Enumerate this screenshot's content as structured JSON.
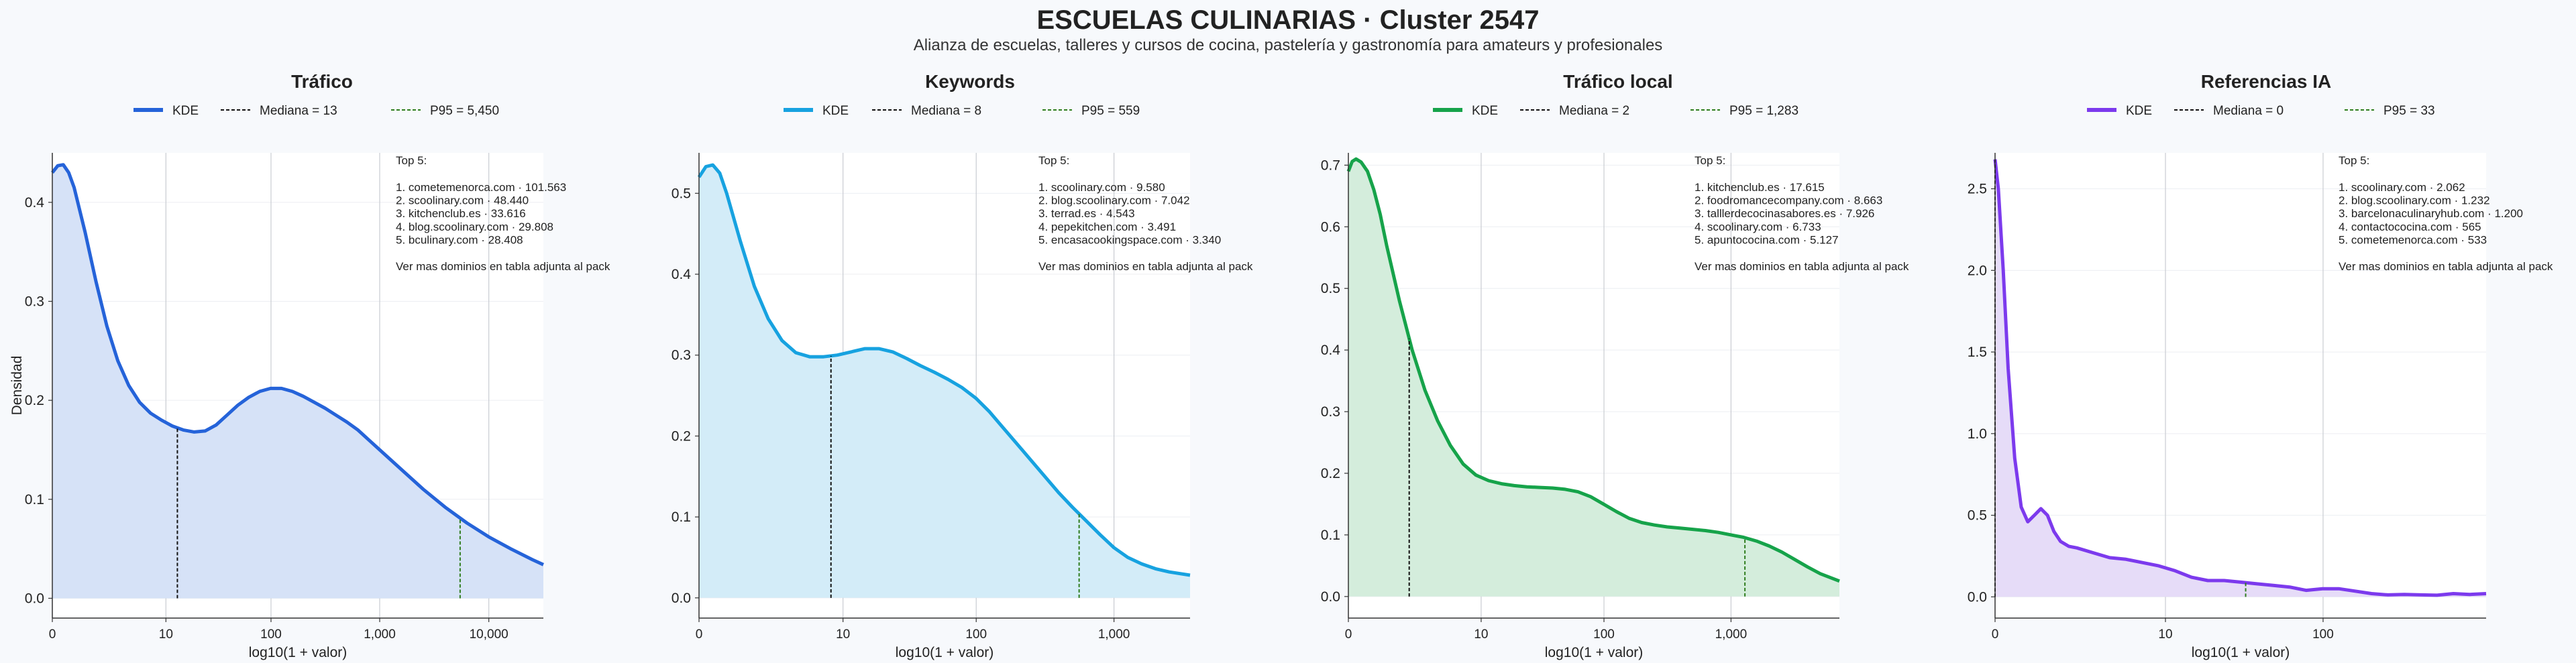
{
  "title": "ESCUELAS CULINARIAS · Cluster 2547",
  "subtitle": "Alianza de escuelas, talleres y cursos de cocina, pastelería y gastronomía para amateurs y profesionales",
  "chart_data": [
    {
      "type": "area",
      "title": "Tráfico",
      "color": "#2563d9",
      "fill": "#d6e2f7",
      "xlabel": "log10(1 + valor)",
      "ylabel": "Densidad",
      "xscale": "log10(1+x)",
      "xlim": [
        0,
        4.5
      ],
      "ylim": [
        -0.02,
        0.45
      ],
      "yticks": [
        0.0,
        0.1,
        0.2,
        0.3,
        0.4
      ],
      "ytick_labels": [
        "0.0",
        "0.1",
        "0.2",
        "0.3",
        "0.4"
      ],
      "xticks": [
        0,
        1.041,
        2.004,
        3.0,
        4.0
      ],
      "xtick_labels": [
        "0",
        "10",
        "100",
        "1,000",
        "10,000"
      ],
      "legend": [
        "KDE",
        "Mediana = 13",
        "P95 = 5,450"
      ],
      "median_x": 1.146,
      "p95_x": 3.737,
      "series": [
        {
          "x": [
            0,
            0.05,
            0.1,
            0.15,
            0.2,
            0.3,
            0.4,
            0.5,
            0.6,
            0.7,
            0.8,
            0.9,
            1.0,
            1.1,
            1.2,
            1.3,
            1.4,
            1.5,
            1.6,
            1.7,
            1.8,
            1.9,
            2.0,
            2.1,
            2.2,
            2.3,
            2.4,
            2.5,
            2.6,
            2.7,
            2.8,
            2.9,
            3.0,
            3.2,
            3.4,
            3.6,
            3.8,
            4.0,
            4.2,
            4.4,
            4.5
          ],
          "y": [
            0.43,
            0.437,
            0.438,
            0.43,
            0.415,
            0.37,
            0.32,
            0.275,
            0.24,
            0.215,
            0.198,
            0.187,
            0.18,
            0.174,
            0.17,
            0.168,
            0.169,
            0.175,
            0.185,
            0.195,
            0.203,
            0.209,
            0.212,
            0.212,
            0.209,
            0.204,
            0.198,
            0.192,
            0.185,
            0.178,
            0.17,
            0.16,
            0.15,
            0.13,
            0.11,
            0.092,
            0.076,
            0.062,
            0.05,
            0.039,
            0.034
          ]
        }
      ],
      "annotation": {
        "header": "Top 5:",
        "lines": [
          "1. cometemenorca.com · 101.563",
          "2. scoolinary.com · 48.440",
          "3. kitchenclub.es · 33.616",
          "4. blog.scoolinary.com · 29.808",
          "5. bculinary.com · 28.408"
        ],
        "footer": "Ver mas dominios en tabla adjunta al pack"
      }
    },
    {
      "type": "area",
      "title": "Keywords",
      "color": "#17a2e0",
      "fill": "#d3ecf8",
      "xlabel": "log10(1 + valor)",
      "ylabel": "",
      "xscale": "log10(1+x)",
      "xlim": [
        0,
        3.55
      ],
      "ylim": [
        -0.025,
        0.55
      ],
      "yticks": [
        0.0,
        0.1,
        0.2,
        0.3,
        0.4,
        0.5
      ],
      "ytick_labels": [
        "0.0",
        "0.1",
        "0.2",
        "0.3",
        "0.4",
        "0.5"
      ],
      "xticks": [
        0,
        1.041,
        2.004,
        3.0
      ],
      "xtick_labels": [
        "0",
        "10",
        "100",
        "1,000"
      ],
      "legend": [
        "KDE",
        "Mediana = 8",
        "P95 = 559"
      ],
      "median_x": 0.954,
      "p95_x": 2.748,
      "series": [
        {
          "x": [
            0,
            0.05,
            0.1,
            0.15,
            0.2,
            0.3,
            0.4,
            0.5,
            0.6,
            0.7,
            0.8,
            0.9,
            1.0,
            1.1,
            1.2,
            1.3,
            1.4,
            1.5,
            1.6,
            1.7,
            1.8,
            1.9,
            2.0,
            2.1,
            2.2,
            2.3,
            2.4,
            2.5,
            2.6,
            2.7,
            2.8,
            2.9,
            3.0,
            3.1,
            3.2,
            3.3,
            3.4,
            3.55
          ],
          "y": [
            0.52,
            0.533,
            0.535,
            0.525,
            0.5,
            0.44,
            0.385,
            0.345,
            0.318,
            0.303,
            0.298,
            0.298,
            0.3,
            0.304,
            0.308,
            0.308,
            0.304,
            0.296,
            0.287,
            0.279,
            0.27,
            0.26,
            0.247,
            0.23,
            0.21,
            0.19,
            0.17,
            0.15,
            0.13,
            0.112,
            0.095,
            0.078,
            0.062,
            0.05,
            0.042,
            0.036,
            0.032,
            0.028
          ]
        }
      ],
      "annotation": {
        "header": "Top 5:",
        "lines": [
          "1. scoolinary.com · 9.580",
          "2. blog.scoolinary.com · 7.042",
          "3. terrad.es · 4.543",
          "4. pepekitchen.com · 3.491",
          "5. encasacookingspace.com · 3.340"
        ],
        "footer": "Ver mas dominios en tabla adjunta al pack"
      }
    },
    {
      "type": "area",
      "title": "Tráfico local",
      "color": "#16a34a",
      "fill": "#d4eddc",
      "xlabel": "log10(1 + valor)",
      "ylabel": "",
      "xscale": "log10(1+x)",
      "xlim": [
        0,
        3.85
      ],
      "ylim": [
        -0.035,
        0.72
      ],
      "yticks": [
        0.0,
        0.1,
        0.2,
        0.3,
        0.4,
        0.5,
        0.6,
        0.7
      ],
      "ytick_labels": [
        "0.0",
        "0.1",
        "0.2",
        "0.3",
        "0.4",
        "0.5",
        "0.6",
        "0.7"
      ],
      "xticks": [
        0,
        1.041,
        2.004,
        3.0
      ],
      "xtick_labels": [
        "0",
        "10",
        "100",
        "1,000"
      ],
      "legend": [
        "KDE",
        "Mediana = 2",
        "P95 = 1,283"
      ],
      "median_x": 0.477,
      "p95_x": 3.109,
      "series": [
        {
          "x": [
            0,
            0.03,
            0.06,
            0.1,
            0.15,
            0.2,
            0.25,
            0.3,
            0.4,
            0.5,
            0.6,
            0.7,
            0.8,
            0.9,
            1.0,
            1.1,
            1.2,
            1.3,
            1.4,
            1.5,
            1.6,
            1.7,
            1.8,
            1.9,
            2.0,
            2.1,
            2.2,
            2.3,
            2.4,
            2.5,
            2.6,
            2.7,
            2.8,
            2.9,
            3.0,
            3.1,
            3.2,
            3.3,
            3.4,
            3.5,
            3.6,
            3.7,
            3.85
          ],
          "y": [
            0.69,
            0.706,
            0.71,
            0.705,
            0.69,
            0.66,
            0.62,
            0.57,
            0.48,
            0.4,
            0.335,
            0.285,
            0.245,
            0.215,
            0.197,
            0.188,
            0.183,
            0.18,
            0.178,
            0.177,
            0.176,
            0.174,
            0.17,
            0.162,
            0.15,
            0.138,
            0.127,
            0.12,
            0.116,
            0.113,
            0.111,
            0.109,
            0.107,
            0.104,
            0.1,
            0.096,
            0.09,
            0.082,
            0.072,
            0.06,
            0.048,
            0.037,
            0.025
          ]
        }
      ],
      "annotation": {
        "header": "Top 5:",
        "lines": [
          "1. kitchenclub.es · 17.615",
          "2. foodromancecompany.com · 8.663",
          "3. talllerdecocinasabores.es · 7.926",
          "4. scoolinary.com · 6.733",
          "5. apuntococina.com · 5.127"
        ],
        "footer": "Ver mas dominios en tabla adjunta al pack"
      }
    },
    {
      "type": "area",
      "title": "Referencias IA",
      "color": "#7c3aed",
      "fill": "#e6dcf8",
      "xlabel": "log10(1 + valor)",
      "ylabel": "",
      "xscale": "log10(1+x)",
      "xlim": [
        0,
        3.0
      ],
      "ylim": [
        -0.13,
        2.72
      ],
      "yticks": [
        0.0,
        0.5,
        1.0,
        1.5,
        2.0,
        2.5
      ],
      "ytick_labels": [
        "0.0",
        "0.5",
        "1.0",
        "1.5",
        "2.0",
        "2.5"
      ],
      "xticks": [
        0,
        1.041,
        2.004
      ],
      "xtick_labels": [
        "0",
        "10",
        "100"
      ],
      "legend": [
        "KDE",
        "Mediana = 0",
        "P95 = 33"
      ],
      "median_x": 0,
      "p95_x": 1.531,
      "series": [
        {
          "x": [
            0,
            0.02,
            0.05,
            0.08,
            0.12,
            0.16,
            0.2,
            0.24,
            0.28,
            0.32,
            0.36,
            0.4,
            0.45,
            0.5,
            0.6,
            0.7,
            0.8,
            0.9,
            1.0,
            1.1,
            1.2,
            1.3,
            1.4,
            1.5,
            1.6,
            1.7,
            1.8,
            1.9,
            2.0,
            2.1,
            2.2,
            2.3,
            2.4,
            2.5,
            2.6,
            2.7,
            2.8,
            2.9,
            3.0
          ],
          "y": [
            2.68,
            2.5,
            2.0,
            1.4,
            0.85,
            0.55,
            0.46,
            0.5,
            0.54,
            0.5,
            0.4,
            0.34,
            0.31,
            0.3,
            0.27,
            0.24,
            0.23,
            0.21,
            0.19,
            0.16,
            0.12,
            0.1,
            0.1,
            0.09,
            0.08,
            0.07,
            0.06,
            0.04,
            0.05,
            0.05,
            0.035,
            0.02,
            0.012,
            0.015,
            0.012,
            0.01,
            0.02,
            0.015,
            0.02
          ]
        }
      ],
      "annotation": {
        "header": "Top 5:",
        "lines": [
          "1. scoolinary.com · 2.062",
          "2. blog.scoolinary.com · 1.232",
          "3. barcelonaculinaryhub.com · 1.200",
          "4. contactococina.com · 565",
          "5. cometemenorca.com · 533"
        ],
        "footer": "Ver mas dominios en tabla adjunta al pack"
      }
    }
  ]
}
